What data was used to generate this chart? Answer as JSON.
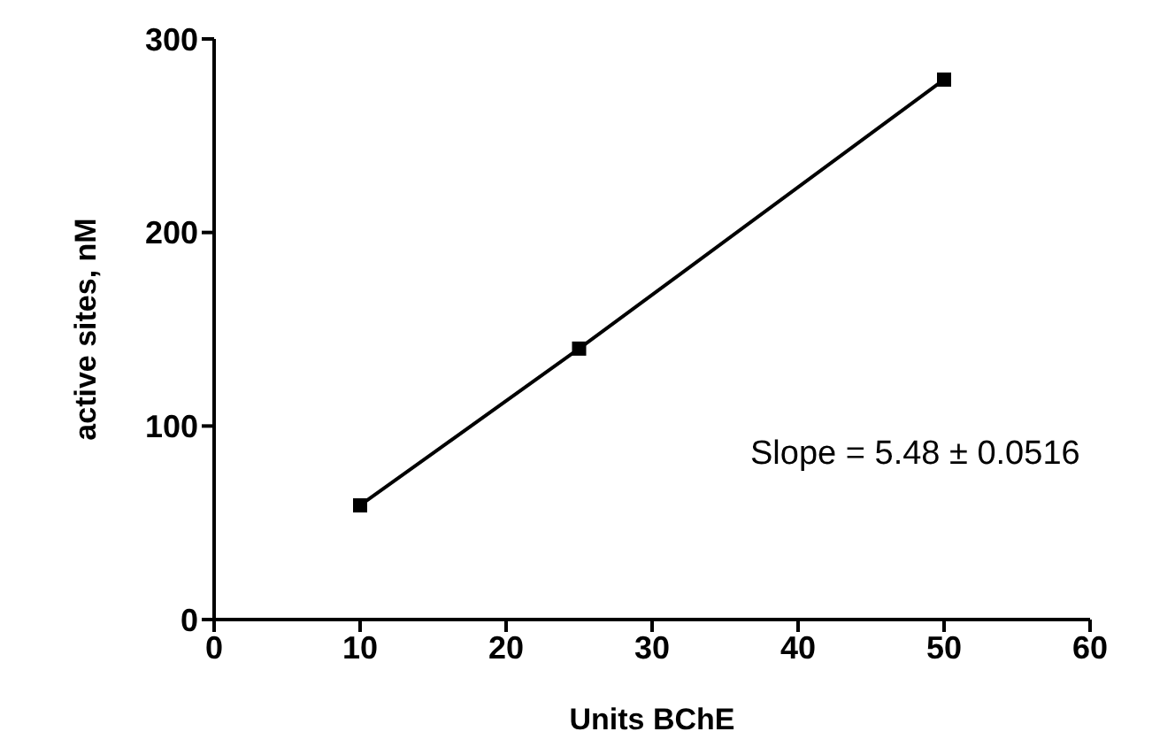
{
  "chart_data": {
    "type": "line",
    "xlabel": "Units BChE",
    "ylabel": "active sites, nM",
    "x": [
      10,
      25,
      50
    ],
    "series": [
      {
        "color": "#000000",
        "values": [
          59,
          140,
          279
        ]
      }
    ],
    "xlim": [
      0,
      60
    ],
    "xticks": [
      0,
      10,
      20,
      30,
      40,
      50,
      60
    ],
    "ylim": [
      0,
      300
    ],
    "yticks": [
      0,
      100,
      200,
      300
    ],
    "marker": "square",
    "line_style": "solid",
    "grid": false,
    "legend": false,
    "annotations": [
      "Slope = 5.48 ± 0.0516"
    ]
  }
}
